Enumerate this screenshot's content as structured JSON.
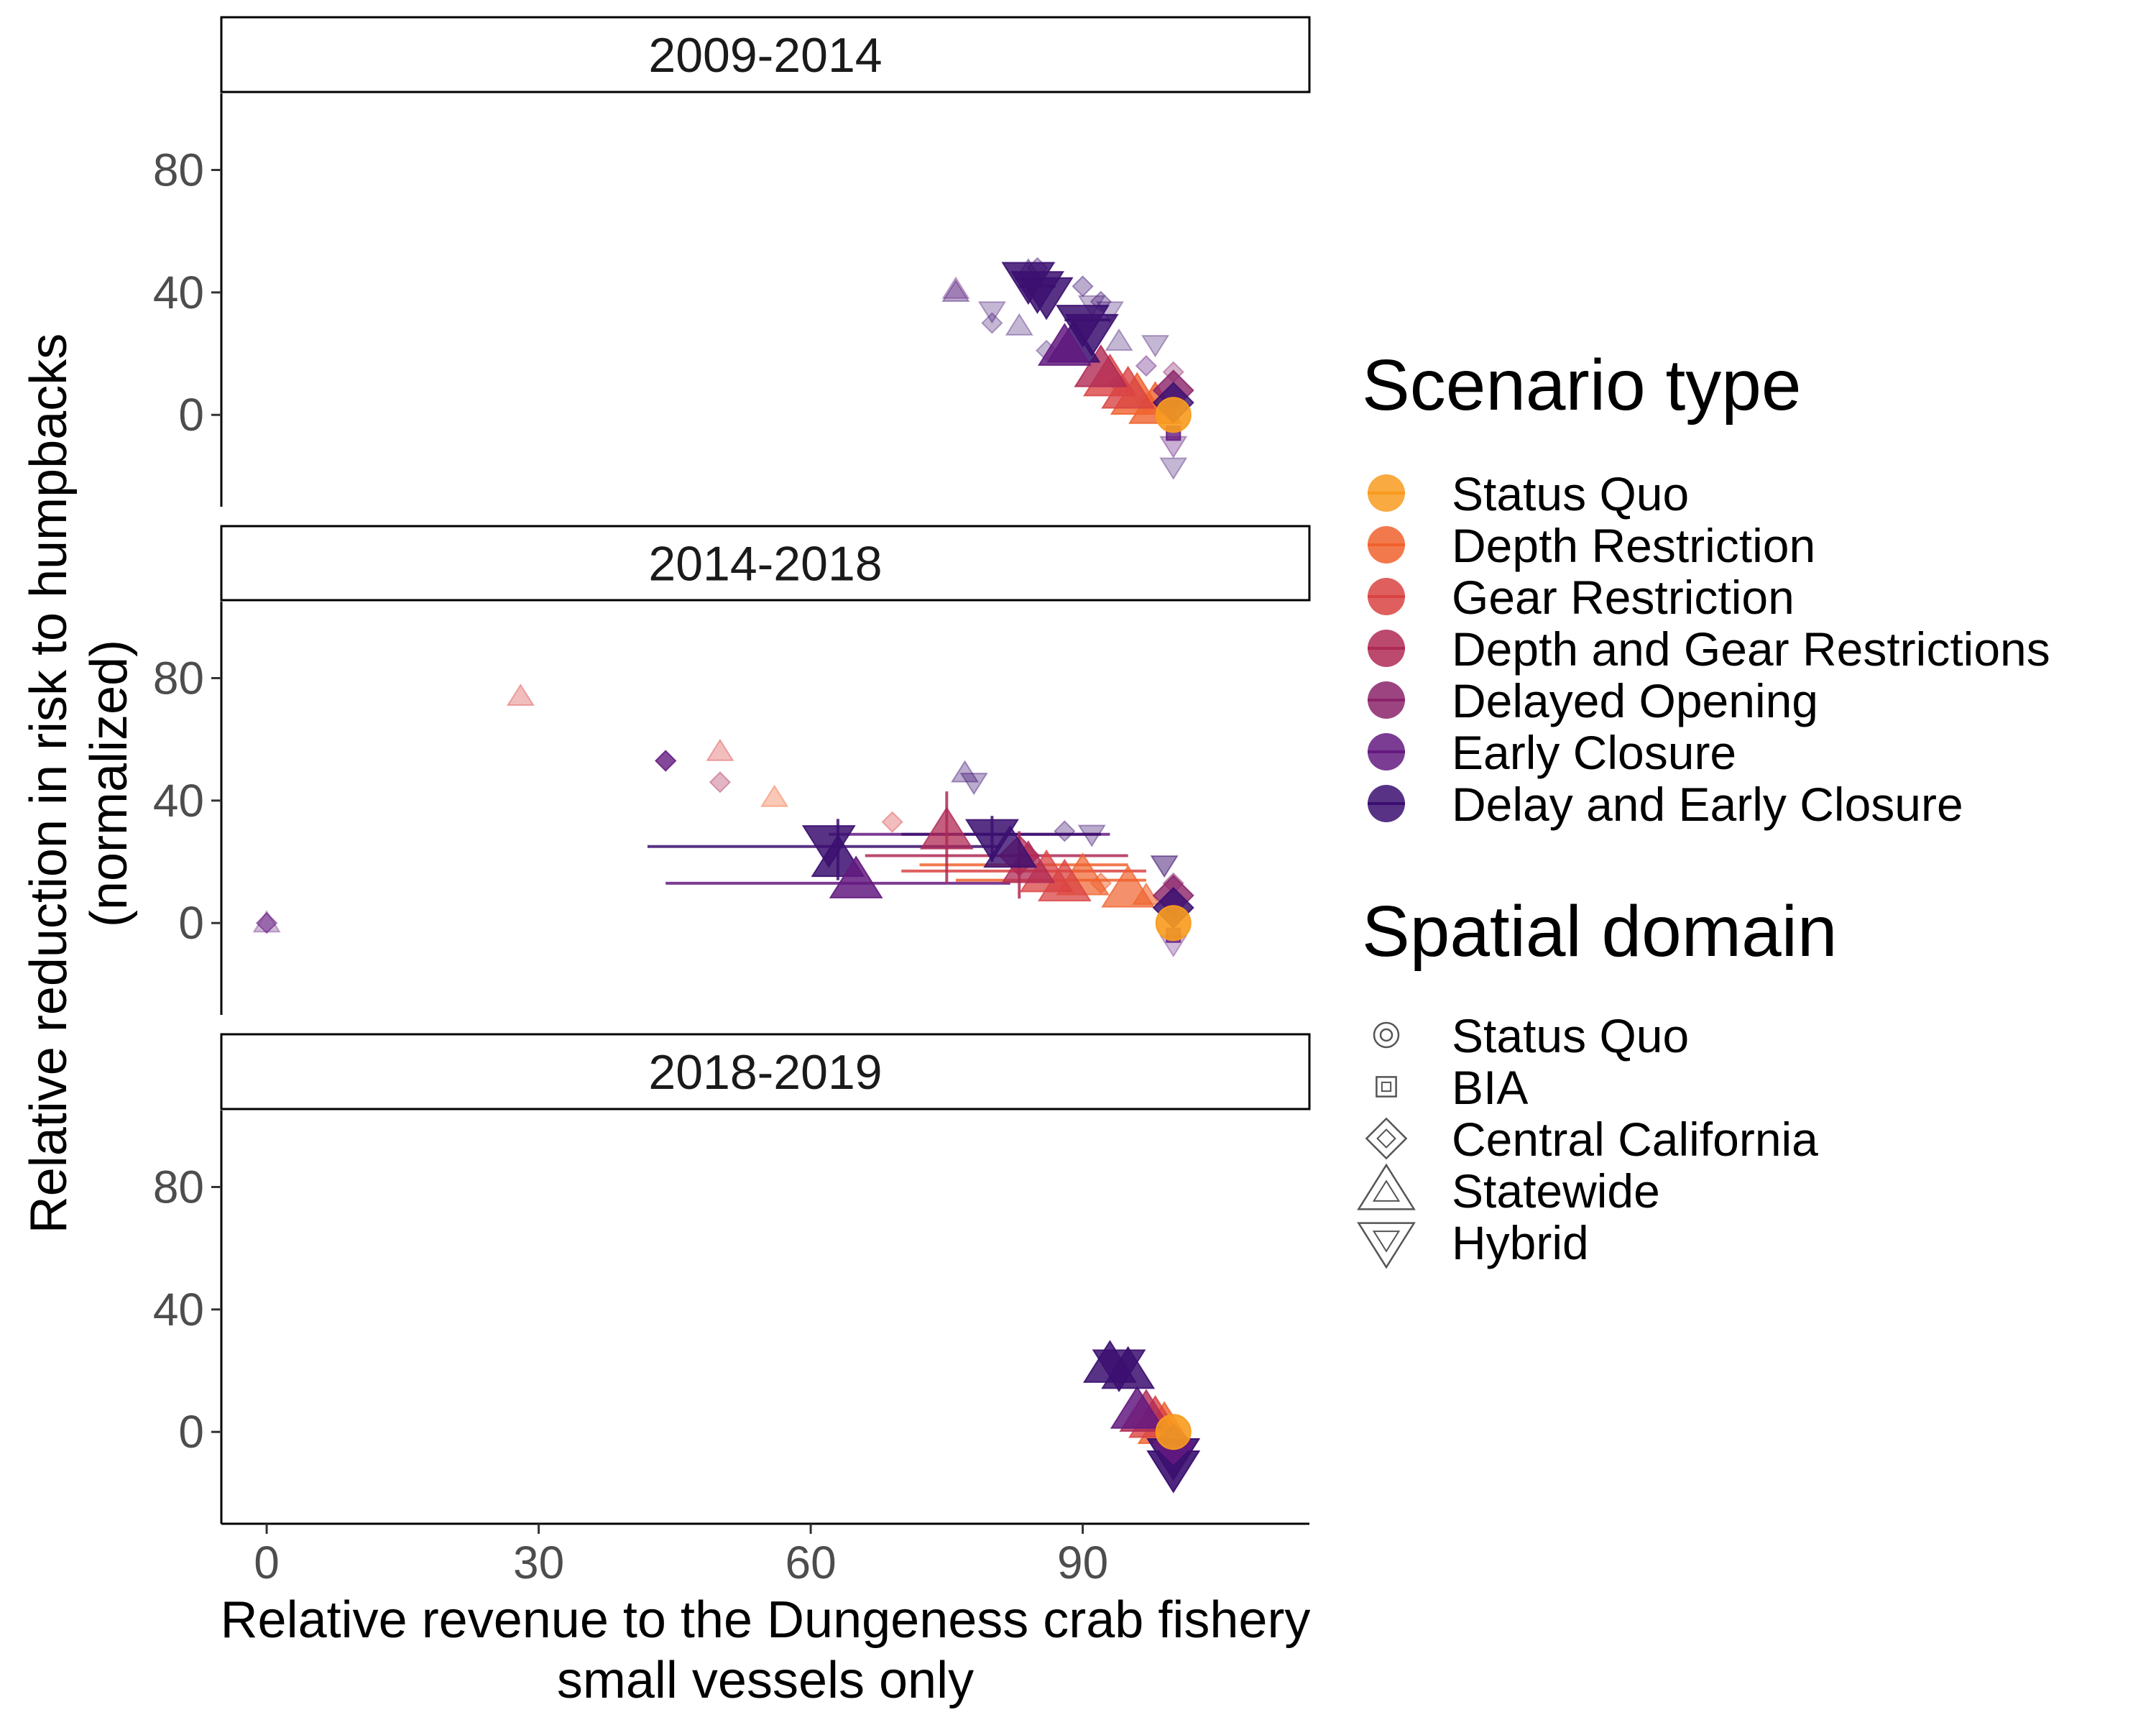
{
  "chart_data": {
    "type": "scatter",
    "xlabel": "Relative revenue to the Dungeness crab fishery",
    "xlabel_line2": "small vessels only",
    "ylabel": "Relative reduction in risk to humpbacks",
    "ylabel_line2": "(normalized)",
    "xlim": [
      -5,
      115
    ],
    "ylim": [
      -30,
      105
    ],
    "x_ticks": [
      "0",
      "30",
      "60",
      "90"
    ],
    "x_tick_values": [
      0,
      30,
      60,
      90
    ],
    "y_ticks": [
      "0",
      "40",
      "80"
    ],
    "y_tick_values": [
      0,
      40,
      80
    ],
    "grid": false,
    "legend_placement": "right",
    "legend": {
      "color_title": "Scenario type",
      "shape_title": "Spatial domain",
      "scenario_types": [
        {
          "name": "Status Quo",
          "color": "#F89B1E"
        },
        {
          "name": "Depth Restriction",
          "color": "#F0622D"
        },
        {
          "name": "Gear Restriction",
          "color": "#D94343"
        },
        {
          "name": "Depth and Gear Restrictions",
          "color": "#B02A55"
        },
        {
          "name": "Delayed Opening",
          "color": "#8B236A"
        },
        {
          "name": "Early Closure",
          "color": "#641A80"
        },
        {
          "name": "Delay and Early Closure",
          "color": "#3B0F70"
        }
      ],
      "spatial_domains": [
        {
          "name": "Status Quo",
          "shape": "circle"
        },
        {
          "name": "BIA",
          "shape": "square"
        },
        {
          "name": "Central California",
          "shape": "diamond"
        },
        {
          "name": "Statewide",
          "shape": "triangle-up"
        },
        {
          "name": "Hybrid",
          "shape": "triangle-down"
        }
      ]
    },
    "panels": [
      {
        "label": "2009-2014",
        "points": [
          {
            "x": 100,
            "y": 0,
            "type": 0,
            "shape": "circle",
            "big": true,
            "alpha": 0.9
          },
          {
            "x": 98,
            "y": 3,
            "type": 1,
            "shape": "triangle-up",
            "big": true,
            "alpha": 0.8
          },
          {
            "x": 96,
            "y": 6,
            "type": 1,
            "shape": "triangle-up",
            "big": true,
            "alpha": 0.8
          },
          {
            "x": 97,
            "y": 4,
            "type": 1,
            "shape": "diamond",
            "big": false,
            "alpha": 0.35
          },
          {
            "x": 95,
            "y": 8,
            "type": 2,
            "shape": "triangle-up",
            "big": true,
            "alpha": 0.8
          },
          {
            "x": 93,
            "y": 12,
            "type": 2,
            "shape": "triangle-up",
            "big": true,
            "alpha": 0.8
          },
          {
            "x": 92,
            "y": 15,
            "type": 3,
            "shape": "triangle-up",
            "big": true,
            "alpha": 0.8
          },
          {
            "x": 94,
            "y": 10,
            "type": 3,
            "shape": "diamond",
            "big": false,
            "alpha": 0.35
          },
          {
            "x": 100,
            "y": 8,
            "type": 4,
            "shape": "diamond",
            "big": true,
            "alpha": 0.8
          },
          {
            "x": 100,
            "y": 14,
            "type": 4,
            "shape": "diamond",
            "big": false,
            "alpha": 0.35
          },
          {
            "x": 100,
            "y": -6,
            "type": 5,
            "shape": "square",
            "big": false,
            "alpha": 0.8
          },
          {
            "x": 100,
            "y": -10,
            "type": 5,
            "shape": "triangle-down",
            "big": false,
            "alpha": 0.35
          },
          {
            "x": 100,
            "y": -17,
            "type": 6,
            "shape": "triangle-down",
            "big": false,
            "alpha": 0.3
          },
          {
            "x": 100,
            "y": 4,
            "type": 6,
            "shape": "diamond",
            "big": true,
            "alpha": 0.8
          },
          {
            "x": 85,
            "y": 41,
            "type": 6,
            "shape": "triangle-down",
            "big": true,
            "alpha": 0.85
          },
          {
            "x": 84,
            "y": 44,
            "type": 6,
            "shape": "triangle-down",
            "big": true,
            "alpha": 0.85
          },
          {
            "x": 86,
            "y": 39,
            "type": 6,
            "shape": "triangle-down",
            "big": true,
            "alpha": 0.85
          },
          {
            "x": 90,
            "y": 30,
            "type": 6,
            "shape": "triangle-down",
            "big": true,
            "alpha": 0.85
          },
          {
            "x": 91,
            "y": 27,
            "type": 6,
            "shape": "triangle-down",
            "big": true,
            "alpha": 0.85
          },
          {
            "x": 89,
            "y": 23,
            "type": 6,
            "shape": "triangle-up",
            "big": true,
            "alpha": 0.85
          },
          {
            "x": 88,
            "y": 22,
            "type": 5,
            "shape": "triangle-up",
            "big": true,
            "alpha": 0.85
          },
          {
            "x": 84,
            "y": 47,
            "type": 6,
            "shape": "triangle-up",
            "big": false,
            "alpha": 0.35
          },
          {
            "x": 85,
            "y": 48,
            "type": 6,
            "shape": "diamond",
            "big": false,
            "alpha": 0.35
          },
          {
            "x": 90,
            "y": 42,
            "type": 6,
            "shape": "diamond",
            "big": false,
            "alpha": 0.35
          },
          {
            "x": 92,
            "y": 37,
            "type": 6,
            "shape": "diamond",
            "big": false,
            "alpha": 0.35
          },
          {
            "x": 93,
            "y": 34,
            "type": 6,
            "shape": "triangle-down",
            "big": false,
            "alpha": 0.3
          },
          {
            "x": 91,
            "y": 36,
            "type": 6,
            "shape": "triangle-down",
            "big": false,
            "alpha": 0.3
          },
          {
            "x": 76,
            "y": 40,
            "type": 6,
            "shape": "triangle-up",
            "big": false,
            "alpha": 0.35
          },
          {
            "x": 76,
            "y": 41,
            "type": 5,
            "shape": "triangle-up",
            "big": false,
            "alpha": 0.3
          },
          {
            "x": 80,
            "y": 34,
            "type": 6,
            "shape": "triangle-down",
            "big": false,
            "alpha": 0.3
          },
          {
            "x": 80,
            "y": 30,
            "type": 6,
            "shape": "diamond",
            "big": false,
            "alpha": 0.3
          },
          {
            "x": 83,
            "y": 29,
            "type": 6,
            "shape": "triangle-up",
            "big": false,
            "alpha": 0.3
          },
          {
            "x": 86,
            "y": 21,
            "type": 6,
            "shape": "diamond",
            "big": false,
            "alpha": 0.3
          },
          {
            "x": 94,
            "y": 24,
            "type": 6,
            "shape": "triangle-up",
            "big": false,
            "alpha": 0.3
          },
          {
            "x": 98,
            "y": 23,
            "type": 6,
            "shape": "triangle-down",
            "big": false,
            "alpha": 0.3
          },
          {
            "x": 97,
            "y": 16,
            "type": 5,
            "shape": "diamond",
            "big": false,
            "alpha": 0.35
          }
        ],
        "hbars": [
          {
            "x1": 83,
            "x2": 87,
            "y": 42,
            "type": 6
          },
          {
            "x1": 88,
            "x2": 93,
            "y": 31,
            "type": 6
          }
        ],
        "vbars": []
      },
      {
        "label": "2014-2018",
        "points": [
          {
            "x": 100,
            "y": 0,
            "type": 0,
            "shape": "circle",
            "big": true,
            "alpha": 0.9
          },
          {
            "x": 97,
            "y": 9,
            "type": 1,
            "shape": "triangle-up",
            "big": false,
            "alpha": 0.6
          },
          {
            "x": 95,
            "y": 11,
            "type": 1,
            "shape": "triangle-up",
            "big": true,
            "alpha": 0.7
          },
          {
            "x": 92,
            "y": 13,
            "type": 1,
            "shape": "diamond",
            "big": false,
            "alpha": 0.5
          },
          {
            "x": 90,
            "y": 15,
            "type": 1,
            "shape": "triangle-up",
            "big": true,
            "alpha": 0.7
          },
          {
            "x": 88,
            "y": 13,
            "type": 2,
            "shape": "triangle-up",
            "big": true,
            "alpha": 0.75
          },
          {
            "x": 86,
            "y": 16,
            "type": 2,
            "shape": "triangle-up",
            "big": true,
            "alpha": 0.75
          },
          {
            "x": 84,
            "y": 19,
            "type": 3,
            "shape": "triangle-up",
            "big": true,
            "alpha": 0.75
          },
          {
            "x": 83,
            "y": 22,
            "type": 3,
            "shape": "diamond",
            "big": true,
            "alpha": 0.75
          },
          {
            "x": 75,
            "y": 30,
            "type": 3,
            "shape": "triangle-up",
            "big": true,
            "alpha": 0.75
          },
          {
            "x": 82,
            "y": 24,
            "type": 6,
            "shape": "triangle-up",
            "big": true,
            "alpha": 0.8
          },
          {
            "x": 80,
            "y": 28,
            "type": 6,
            "shape": "triangle-down",
            "big": true,
            "alpha": 0.85
          },
          {
            "x": 62,
            "y": 26,
            "type": 6,
            "shape": "triangle-down",
            "big": true,
            "alpha": 0.85
          },
          {
            "x": 63,
            "y": 21,
            "type": 6,
            "shape": "triangle-up",
            "big": true,
            "alpha": 0.85
          },
          {
            "x": 65,
            "y": 14,
            "type": 5,
            "shape": "triangle-up",
            "big": true,
            "alpha": 0.85
          },
          {
            "x": 100,
            "y": 9,
            "type": 4,
            "shape": "diamond",
            "big": true,
            "alpha": 0.8
          },
          {
            "x": 100,
            "y": 5,
            "type": 6,
            "shape": "diamond",
            "big": true,
            "alpha": 0.85
          },
          {
            "x": 100,
            "y": -4,
            "type": 5,
            "shape": "square",
            "big": false,
            "alpha": 0.7
          },
          {
            "x": 100,
            "y": -7,
            "type": 5,
            "shape": "triangle-down",
            "big": false,
            "alpha": 0.3
          },
          {
            "x": 100,
            "y": 13,
            "type": 4,
            "shape": "diamond",
            "big": false,
            "alpha": 0.4
          },
          {
            "x": 28,
            "y": 74,
            "type": 2,
            "shape": "triangle-up",
            "big": false,
            "alpha": 0.35
          },
          {
            "x": 44,
            "y": 53,
            "type": 5,
            "shape": "diamond",
            "big": false,
            "alpha": 0.8
          },
          {
            "x": 50,
            "y": 56,
            "type": 2,
            "shape": "triangle-up",
            "big": false,
            "alpha": 0.35
          },
          {
            "x": 50,
            "y": 46,
            "type": 3,
            "shape": "diamond",
            "big": false,
            "alpha": 0.35
          },
          {
            "x": 56,
            "y": 41,
            "type": 1,
            "shape": "triangle-up",
            "big": false,
            "alpha": 0.35
          },
          {
            "x": 69,
            "y": 33,
            "type": 2,
            "shape": "diamond",
            "big": false,
            "alpha": 0.35
          },
          {
            "x": 0,
            "y": 0,
            "type": 5,
            "shape": "diamond",
            "big": false,
            "alpha": 0.5
          },
          {
            "x": 0,
            "y": 0,
            "type": 5,
            "shape": "triangle-up",
            "big": false,
            "alpha": 0.3
          },
          {
            "x": 77,
            "y": 49,
            "type": 6,
            "shape": "triangle-up",
            "big": false,
            "alpha": 0.35
          },
          {
            "x": 78,
            "y": 46,
            "type": 6,
            "shape": "triangle-down",
            "big": false,
            "alpha": 0.35
          },
          {
            "x": 88,
            "y": 30,
            "type": 6,
            "shape": "diamond",
            "big": false,
            "alpha": 0.35
          },
          {
            "x": 91,
            "y": 29,
            "type": 6,
            "shape": "triangle-down",
            "big": false,
            "alpha": 0.35
          },
          {
            "x": 99,
            "y": 19,
            "type": 6,
            "shape": "triangle-down",
            "big": false,
            "alpha": 0.5
          }
        ],
        "hbars": [
          {
            "x1": 42,
            "x2": 81,
            "y": 25,
            "type": 6
          },
          {
            "x1": 44,
            "x2": 82,
            "y": 13,
            "type": 5
          },
          {
            "x1": 62,
            "x2": 93,
            "y": 29,
            "type": 5
          },
          {
            "x1": 70,
            "x2": 92,
            "y": 29,
            "type": 6
          },
          {
            "x1": 66,
            "x2": 95,
            "y": 22,
            "type": 3
          },
          {
            "x1": 70,
            "x2": 97,
            "y": 17,
            "type": 2
          },
          {
            "x1": 72,
            "x2": 95,
            "y": 19,
            "type": 1
          },
          {
            "x1": 76,
            "x2": 97,
            "y": 14,
            "type": 1
          }
        ],
        "vbars": [
          {
            "x": 75,
            "y1": 13,
            "y2": 43,
            "type": 3
          },
          {
            "x": 63,
            "y1": 14,
            "y2": 34,
            "type": 6
          },
          {
            "x": 83,
            "y1": 8,
            "y2": 30,
            "type": 3
          },
          {
            "x": 80,
            "y1": 20,
            "y2": 35,
            "type": 6
          }
        ]
      },
      {
        "label": "2018-2019",
        "points": [
          {
            "x": 100,
            "y": 0,
            "type": 0,
            "shape": "circle",
            "big": true,
            "alpha": 0.9
          },
          {
            "x": 99,
            "y": 2,
            "type": 1,
            "shape": "triangle-up",
            "big": true,
            "alpha": 0.8
          },
          {
            "x": 98,
            "y": 4,
            "type": 2,
            "shape": "triangle-up",
            "big": true,
            "alpha": 0.8
          },
          {
            "x": 97,
            "y": 6,
            "type": 3,
            "shape": "triangle-up",
            "big": true,
            "alpha": 0.8
          },
          {
            "x": 96,
            "y": 7,
            "type": 5,
            "shape": "triangle-up",
            "big": true,
            "alpha": 0.85
          },
          {
            "x": 93,
            "y": 22,
            "type": 6,
            "shape": "triangle-up",
            "big": true,
            "alpha": 0.85
          },
          {
            "x": 94,
            "y": 21,
            "type": 6,
            "shape": "triangle-down",
            "big": true,
            "alpha": 0.85
          },
          {
            "x": 95,
            "y": 20,
            "type": 6,
            "shape": "triangle-up",
            "big": true,
            "alpha": 0.85
          },
          {
            "x": 100,
            "y": -8,
            "type": 6,
            "shape": "triangle-down",
            "big": true,
            "alpha": 0.9
          },
          {
            "x": 100,
            "y": -12,
            "type": 6,
            "shape": "triangle-down",
            "big": true,
            "alpha": 0.9
          },
          {
            "x": 100,
            "y": -4,
            "type": 5,
            "shape": "diamond",
            "big": true,
            "alpha": 0.85
          }
        ],
        "hbars": [],
        "vbars": []
      }
    ]
  }
}
